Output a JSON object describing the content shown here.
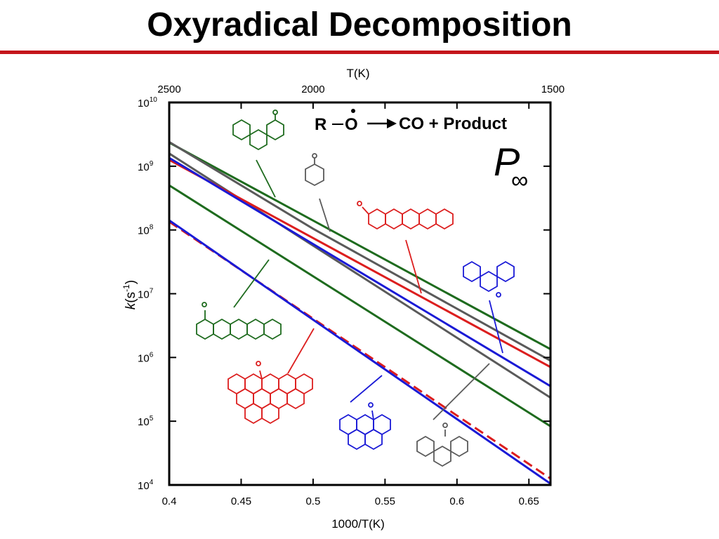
{
  "slide": {
    "title": "Oxyradical Decomposition"
  },
  "colors": {
    "rule": "#c4161c",
    "green": "#1e6b1e",
    "gray": "#5a5a5a",
    "red": "#dc1e1e",
    "blue": "#1a1ad6"
  },
  "chart_data": {
    "type": "line",
    "xlabel": "1000/T(K)",
    "ylabel_main": "k",
    "ylabel_unit": "(s",
    "ylabel_exp": "-1",
    "ylabel_close": ")",
    "top_axis_label": "T(K)",
    "xlim": [
      0.4,
      0.665
    ],
    "ylim": [
      4,
      10
    ],
    "yscale": "log",
    "x_ticks": [
      "0.4",
      "0.45",
      "0.5",
      "0.55",
      "0.6",
      "0.65"
    ],
    "top_ticks": [
      {
        "T": 2500,
        "label": "2500"
      },
      {
        "T": 2000,
        "label": "2000"
      },
      {
        "T": 1500,
        "label": "1500"
      }
    ],
    "y_tick_base": "10",
    "y_tick_exps": [
      "4",
      "5",
      "6",
      "7",
      "8",
      "9",
      "10"
    ],
    "annotation": {
      "reaction_R": "R",
      "reaction_O": "O",
      "reaction_rest": "CO + Product",
      "p_label": "P",
      "p_sub": "∞"
    },
    "series": [
      {
        "color": "green",
        "dash": false,
        "points": [
          [
            0.4,
            9.37
          ],
          [
            0.665,
            6.13
          ]
        ]
      },
      {
        "color": "gray",
        "dash": false,
        "points": [
          [
            0.4,
            9.38
          ],
          [
            0.5,
            8.02
          ],
          [
            0.665,
            5.95
          ]
        ]
      },
      {
        "color": "gray",
        "dash": false,
        "points": [
          [
            0.4,
            9.2
          ],
          [
            0.665,
            5.37
          ]
        ]
      },
      {
        "color": "red",
        "dash": false,
        "points": [
          [
            0.4,
            9.1
          ],
          [
            0.665,
            5.85
          ]
        ]
      },
      {
        "color": "blue",
        "dash": false,
        "points": [
          [
            0.4,
            9.13
          ],
          [
            0.665,
            5.55
          ]
        ]
      },
      {
        "color": "green",
        "dash": false,
        "points": [
          [
            0.4,
            8.7
          ],
          [
            0.665,
            4.92
          ]
        ]
      },
      {
        "color": "red",
        "dash": true,
        "points": [
          [
            0.4,
            8.13
          ],
          [
            0.665,
            4.1
          ]
        ]
      },
      {
        "color": "blue",
        "dash": false,
        "points": [
          [
            0.4,
            8.15
          ],
          [
            0.665,
            4.02
          ]
        ]
      }
    ]
  }
}
